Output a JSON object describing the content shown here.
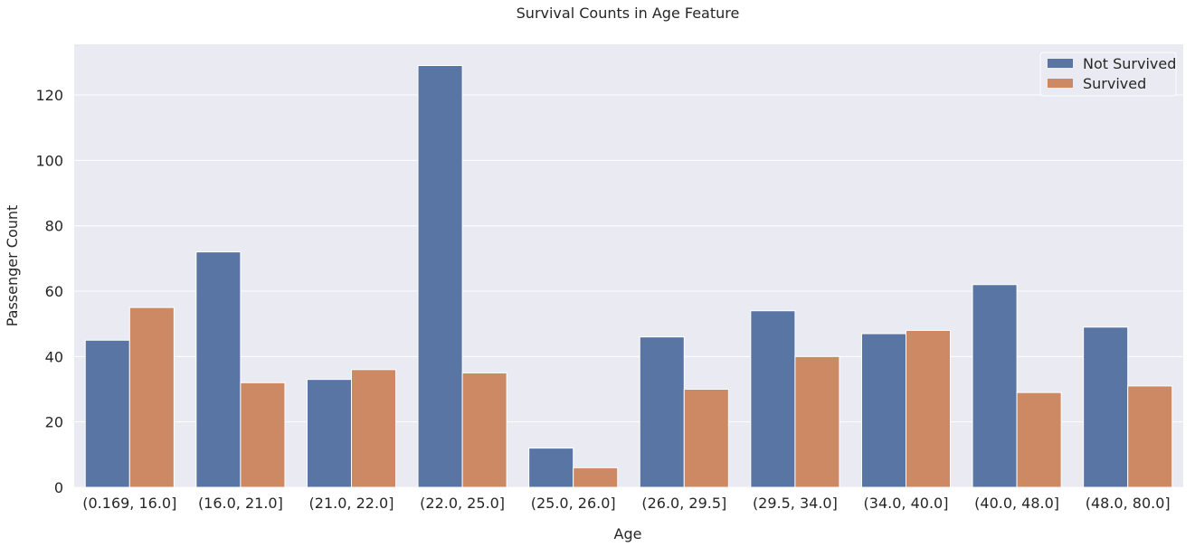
{
  "chart_data": {
    "type": "bar",
    "title": "Survival Counts in Age Feature",
    "xlabel": "Age",
    "ylabel": "Passenger Count",
    "categories": [
      "(0.169, 16.0]",
      "(16.0, 21.0]",
      "(21.0, 22.0]",
      "(22.0, 25.0]",
      "(25.0, 26.0]",
      "(26.0, 29.5]",
      "(29.5, 34.0]",
      "(34.0, 40.0]",
      "(40.0, 48.0]",
      "(48.0, 80.0]"
    ],
    "series": [
      {
        "name": "Not Survived",
        "color": "#5875a4",
        "values": [
          45,
          72,
          33,
          129,
          12,
          46,
          54,
          47,
          62,
          49
        ]
      },
      {
        "name": "Survived",
        "color": "#cc8963",
        "values": [
          55,
          32,
          36,
          35,
          6,
          30,
          40,
          48,
          29,
          31
        ]
      }
    ],
    "ylim": [
      0,
      135.5
    ],
    "yticks": [
      0,
      20,
      40,
      60,
      80,
      100,
      120
    ],
    "grid": true,
    "legend_position": "top-right",
    "background_color": "#eaeaf2"
  }
}
